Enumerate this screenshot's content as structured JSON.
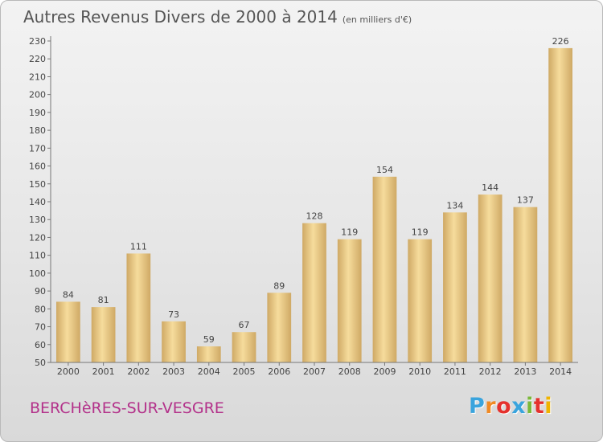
{
  "header": {
    "title": "Autres Revenus Divers de 2000 à 2014",
    "subtitle": "(en milliers d'€)"
  },
  "footer": {
    "location": "BERCHèRES-SUR-VESGRE",
    "brand": "Proxiti",
    "brand_colors": [
      "#3aa4dd",
      "#f08a24",
      "#e5312d",
      "#3aa4dd",
      "#7ab93a",
      "#e5312d",
      "#f0b400"
    ]
  },
  "colors": {
    "bar_light": "#f6dc9c",
    "bar_dark": "#cfa965",
    "axis": "#777777",
    "grid": "#cfcfcf",
    "text": "#444444",
    "location": "#b3318a"
  },
  "chart_data": {
    "type": "bar",
    "title": "Autres Revenus Divers de 2000 à 2014",
    "subtitle": "(en milliers d'€)",
    "xlabel": "",
    "ylabel": "",
    "categories": [
      "2000",
      "2001",
      "2002",
      "2003",
      "2004",
      "2005",
      "2006",
      "2007",
      "2008",
      "2009",
      "2010",
      "2011",
      "2012",
      "2013",
      "2014"
    ],
    "values": [
      84,
      81,
      111,
      73,
      59,
      67,
      89,
      128,
      119,
      154,
      119,
      134,
      144,
      137,
      226
    ],
    "ylim": [
      50,
      230
    ],
    "yticks": [
      50,
      60,
      70,
      80,
      90,
      100,
      110,
      120,
      130,
      140,
      150,
      160,
      170,
      180,
      190,
      200,
      210,
      220,
      230
    ],
    "grid": false,
    "legend": "none"
  }
}
